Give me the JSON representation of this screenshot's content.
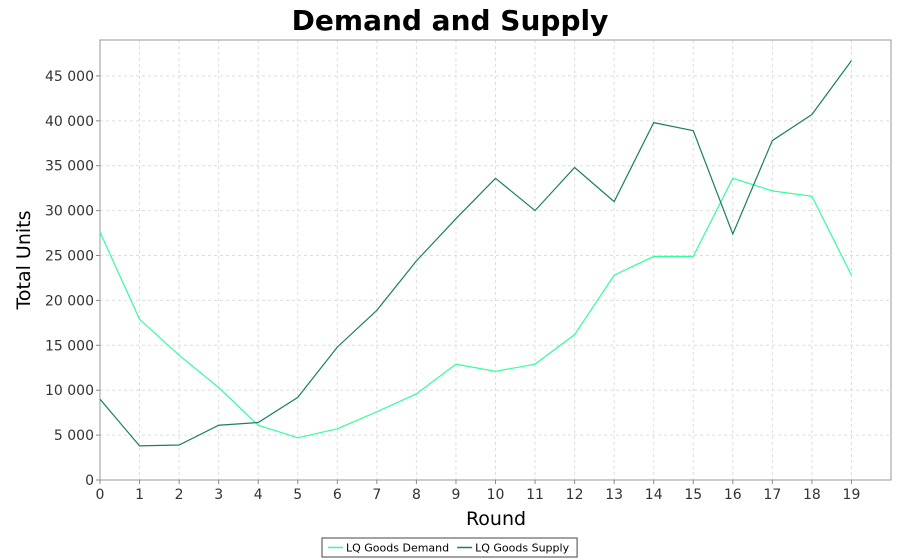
{
  "chart_data": {
    "type": "line",
    "title": "Demand and Supply",
    "xlabel": "Round",
    "ylabel": "Total Units",
    "x": [
      0,
      1,
      2,
      3,
      4,
      5,
      6,
      7,
      8,
      9,
      10,
      11,
      12,
      13,
      14,
      15,
      16,
      17,
      18,
      19
    ],
    "xlim": [
      0,
      20
    ],
    "ylim": [
      0,
      49000
    ],
    "yticks": [
      0,
      5000,
      10000,
      15000,
      20000,
      25000,
      30000,
      35000,
      40000,
      45000
    ],
    "ytick_labels": [
      "0",
      "5 000",
      "10 000",
      "15 000",
      "20 000",
      "25 000",
      "30 000",
      "35 000",
      "40 000",
      "45 000"
    ],
    "grid": true,
    "legend_position": "bottom",
    "series": [
      {
        "name": "LQ Goods Demand",
        "color": "#33ff99",
        "values": [
          27600,
          17900,
          13900,
          10300,
          6100,
          4700,
          5700,
          7600,
          9600,
          12900,
          12100,
          12900,
          16200,
          22800,
          24900,
          24900,
          33600,
          32200,
          31600,
          22800
        ]
      },
      {
        "name": "LQ Goods Supply",
        "color": "#1a8060",
        "values": [
          9000,
          3800,
          3900,
          6100,
          6400,
          9200,
          14800,
          18900,
          24400,
          29100,
          33600,
          30000,
          34800,
          31000,
          39800,
          38900,
          27400,
          37800,
          40700,
          46700
        ]
      }
    ]
  }
}
